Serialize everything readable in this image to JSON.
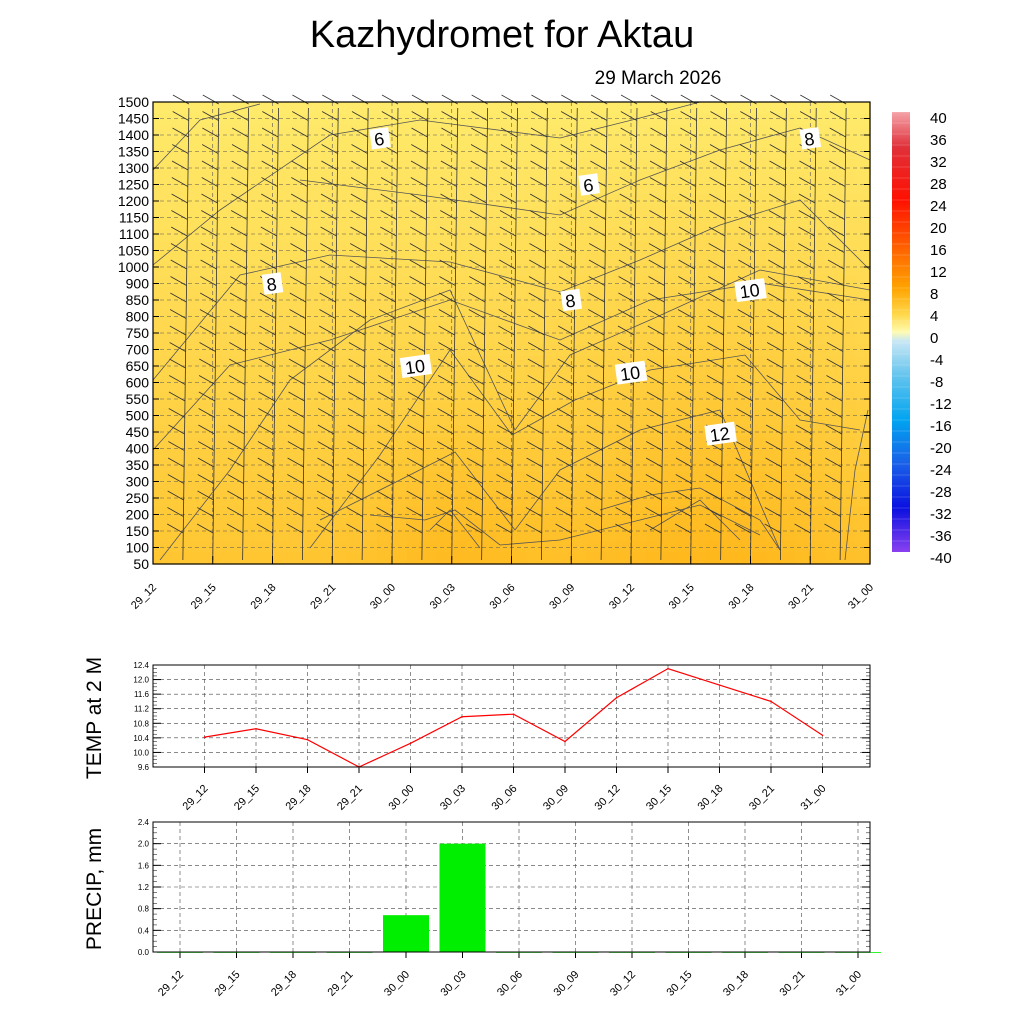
{
  "title": "Kazhydromet  for Aktau",
  "date": "29 March 2026",
  "chart_data": [
    {
      "type": "heatmap",
      "name": "vertical-cross-section",
      "x_ticks": [
        "29_12",
        "29_15",
        "29_18",
        "29_21",
        "30_00",
        "30_03",
        "30_06",
        "30_09",
        "30_12",
        "30_15",
        "30_18",
        "30_21",
        "31_00"
      ],
      "y_ticks": [
        50,
        100,
        150,
        200,
        250,
        300,
        350,
        400,
        450,
        500,
        550,
        600,
        650,
        700,
        750,
        800,
        850,
        900,
        1000,
        1050,
        1100,
        1150,
        1200,
        1250,
        1300,
        1350,
        1400,
        1450,
        1500
      ],
      "contour_labels": [
        {
          "text": "6",
          "time": "30_00 - 0.2",
          "level": 1390
        },
        {
          "text": "6",
          "time": "30_09 + 0.3",
          "level": 1250
        },
        {
          "text": "8",
          "time": "29_18",
          "level": 900
        },
        {
          "text": "8",
          "time": "30_09",
          "level": 850
        },
        {
          "text": "8",
          "time": "30_21",
          "level": 1390
        },
        {
          "text": "10",
          "time": "30_03 - 0.6",
          "level": 650
        },
        {
          "text": "10",
          "time": "30_12",
          "level": 630
        },
        {
          "text": "10",
          "time": "30_18",
          "level": 880
        },
        {
          "text": "12",
          "time": "30_15 + 0.5",
          "level": 445
        }
      ],
      "colorbar": {
        "labels": [
          "40",
          "36",
          "32",
          "28",
          "24",
          "20",
          "16",
          "12",
          "8",
          "4",
          "0",
          "-4",
          "-8",
          "-12",
          "-16",
          "-20",
          "-24",
          "-28",
          "-32",
          "-36",
          "-40"
        ],
        "range": [
          -40,
          40
        ]
      },
      "value_range": [
        5,
        13
      ]
    },
    {
      "type": "line",
      "name": "temp-2m",
      "ylabel": "TEMP at 2 M",
      "categories": [
        "29_12",
        "29_15",
        "29_18",
        "29_21",
        "30_00",
        "30_03",
        "30_06",
        "30_09",
        "30_12",
        "30_15",
        "30_18",
        "30_21",
        "31_00"
      ],
      "values": [
        10.42,
        10.65,
        10.35,
        9.6,
        10.25,
        10.98,
        11.05,
        10.3,
        11.5,
        12.3,
        11.85,
        11.4,
        10.47
      ],
      "ylim": [
        9.6,
        12.4
      ],
      "y_ticks": [
        "12.4",
        "12.0",
        "11.6",
        "11.2",
        "10.8",
        "10.4",
        "10.0",
        "9.6"
      ],
      "color": "#ff0000"
    },
    {
      "type": "bar",
      "name": "precip",
      "ylabel": "PRECIP, mm",
      "categories": [
        "29_12",
        "29_15",
        "29_18",
        "29_21",
        "30_00",
        "30_03",
        "30_06",
        "30_09",
        "30_12",
        "30_15",
        "30_18",
        "30_21",
        "31_00"
      ],
      "values": [
        0,
        0,
        0,
        0,
        0.68,
        2.0,
        0,
        0,
        0,
        0,
        0,
        0,
        0
      ],
      "ylim": [
        0,
        2.4
      ],
      "y_ticks": [
        "2.4",
        "2.0",
        "1.6",
        "1.2",
        "0.8",
        "0.4",
        "0.0"
      ],
      "color": "#00ee00"
    }
  ]
}
